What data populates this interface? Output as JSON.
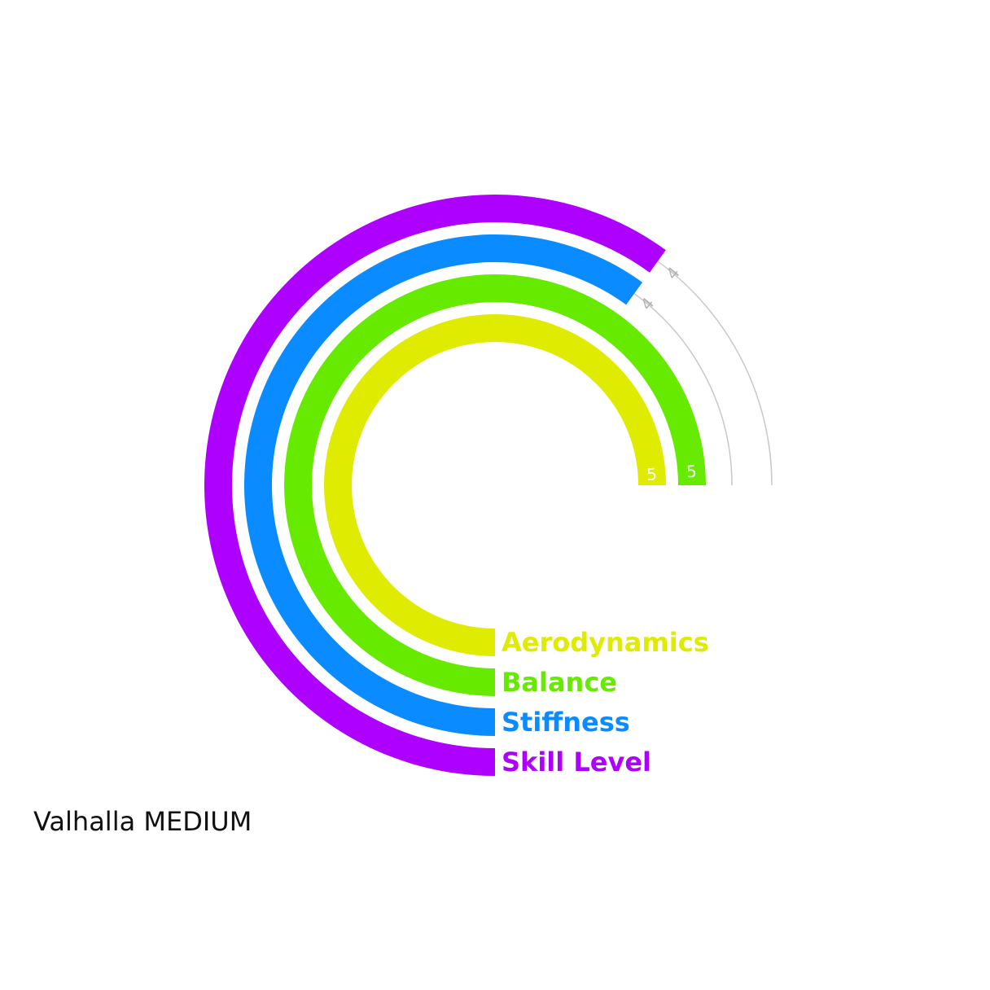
{
  "caption": "Valhalla MEDIUM",
  "colors": {
    "track": "#c8c8c8",
    "value_label_inside": "#ffffff",
    "value_label_outside": "#b4b4b4"
  },
  "chart_data": {
    "type": "radial-bar",
    "title": "",
    "max": 5,
    "series": [
      {
        "name": "Aerodynamics",
        "value": 5,
        "color": "#dfeb00"
      },
      {
        "name": "Balance",
        "value": 5,
        "color": "#66ea00"
      },
      {
        "name": "Stiffness",
        "value": 4,
        "color": "#0a8bff"
      },
      {
        "name": "Skill Level",
        "value": 4,
        "color": "#ad00ff"
      }
    ]
  }
}
